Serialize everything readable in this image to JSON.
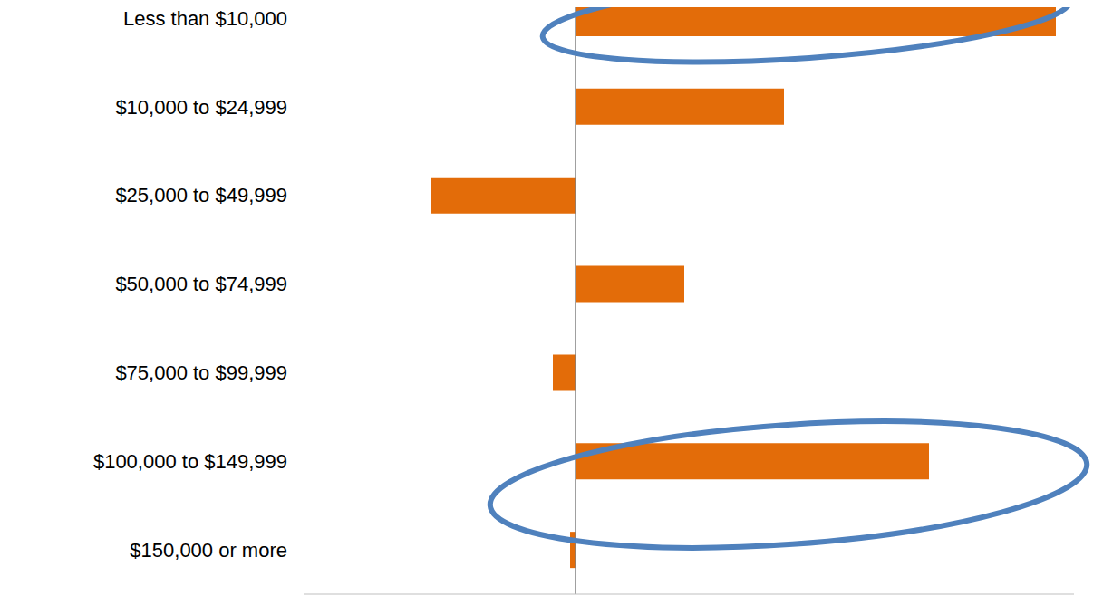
{
  "chart_data": {
    "type": "bar",
    "orientation": "horizontal",
    "categories": [
      "Less than $10,000",
      "$10,000 to $24,999",
      "$25,000 to $49,999",
      "$50,000 to $74,999",
      "$75,000 to $99,999",
      "$100,000 to $149,999",
      "$150,000 or more"
    ],
    "values": [
      5.3,
      2.3,
      -1.6,
      1.2,
      -0.25,
      3.9,
      -0.06
    ],
    "color": "#e36c09",
    "xlim": [
      -3,
      5.5
    ],
    "grid": false,
    "tick_labels": "y"
  }
}
